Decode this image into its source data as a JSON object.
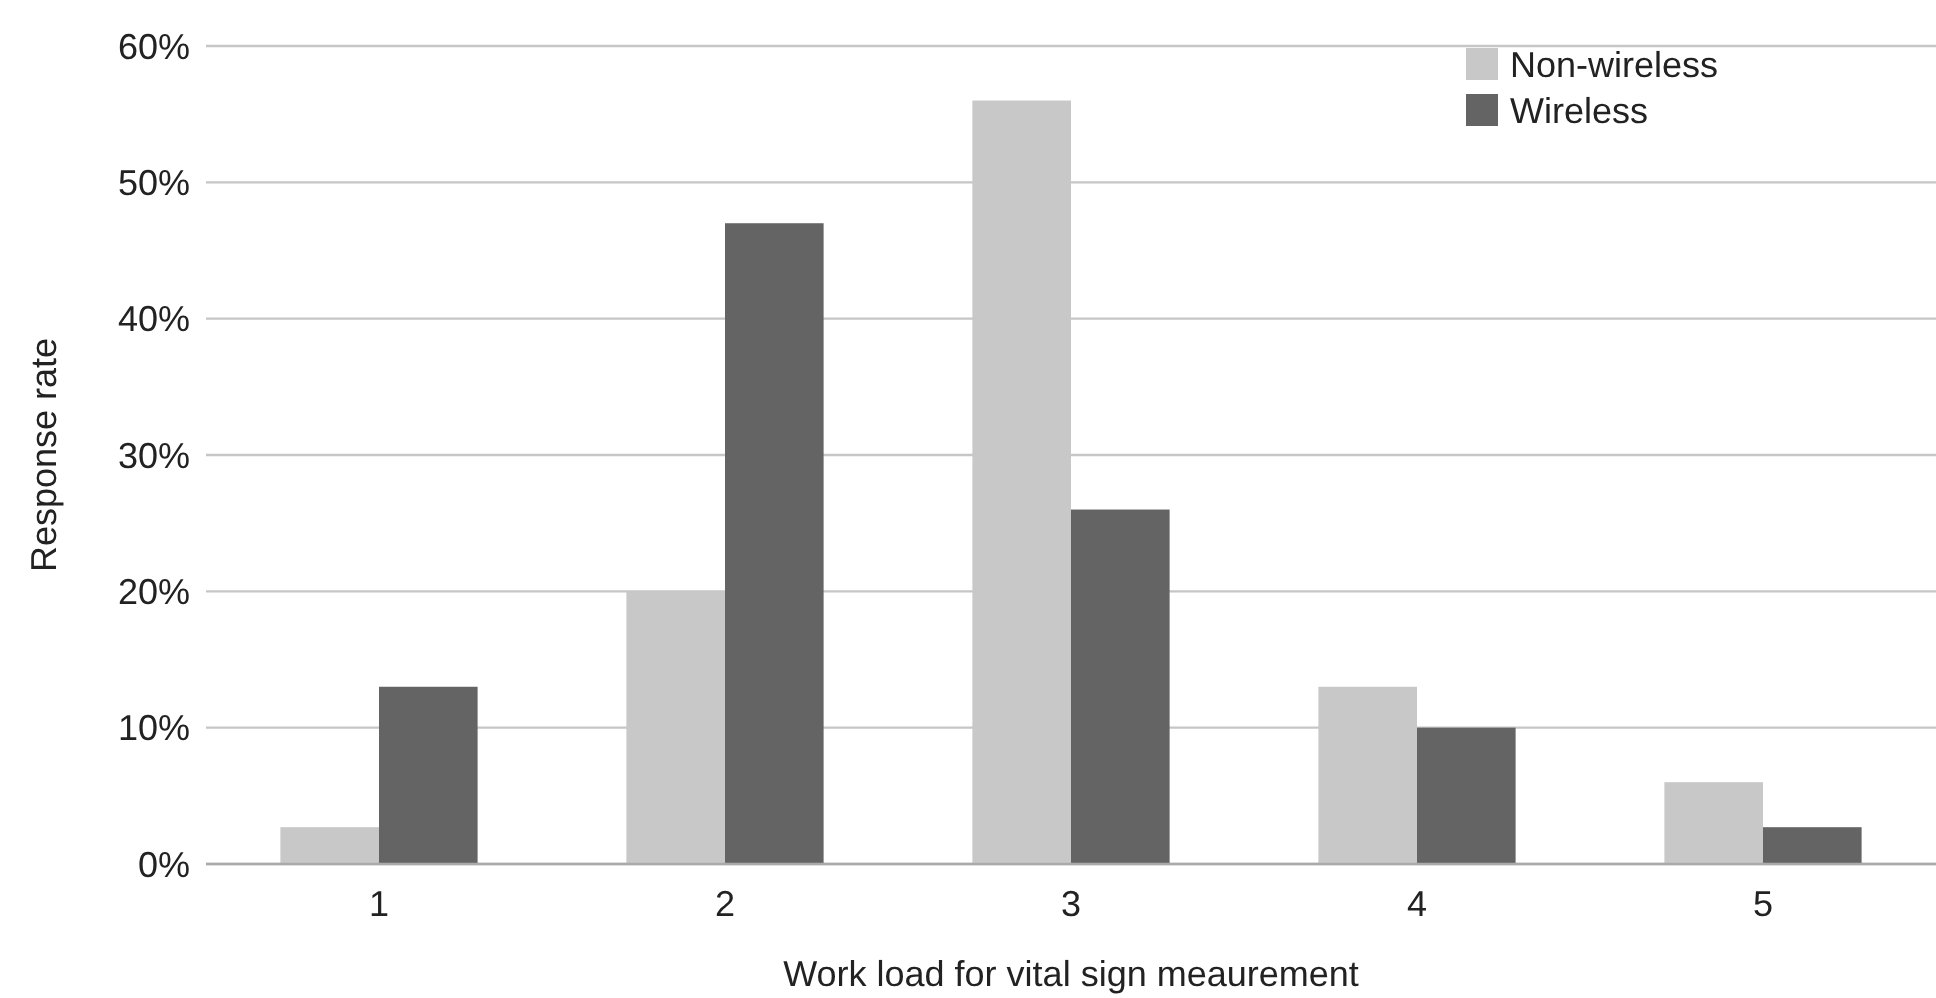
{
  "chart_data": {
    "type": "bar",
    "xlabel": "Work load for vital sign meaurement",
    "ylabel": "Response rate",
    "categories": [
      "1",
      "2",
      "3",
      "4",
      "5"
    ],
    "series": [
      {
        "name": "Non-wireless",
        "color": "#c8c8c8",
        "values": [
          2.7,
          20,
          56,
          13,
          6
        ]
      },
      {
        "name": "Wireless",
        "color": "#646464",
        "values": [
          13,
          47,
          26,
          10,
          2.7
        ]
      }
    ],
    "ylim": [
      0,
      60
    ],
    "yticks": [
      {
        "value": 0,
        "label": "0%"
      },
      {
        "value": 10,
        "label": "10%"
      },
      {
        "value": 20,
        "label": "20%"
      },
      {
        "value": 30,
        "label": "30%"
      },
      {
        "value": 40,
        "label": "40%"
      },
      {
        "value": 50,
        "label": "50%"
      },
      {
        "value": 60,
        "label": "60%"
      }
    ],
    "grid": "y",
    "legend": "top right"
  }
}
